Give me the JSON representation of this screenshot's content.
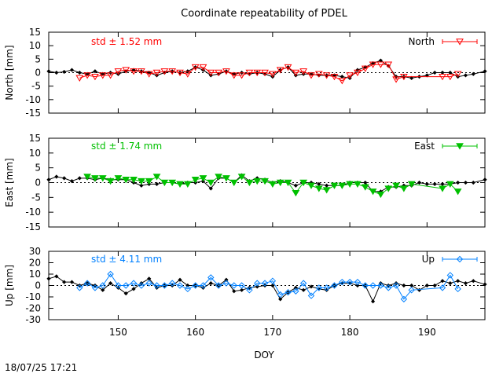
{
  "chart_data": {
    "type": "line",
    "title": "Coordinate repeatability of PDEL",
    "xlabel": "DOY",
    "xlim": [
      141,
      197.5
    ],
    "xticks": [
      150,
      160,
      170,
      180,
      190
    ],
    "panels": [
      {
        "id": "north",
        "ylabel": "North [mm]",
        "ylim": [
          -15,
          15
        ],
        "yticks": [
          -15,
          -10,
          -5,
          0,
          5,
          10,
          15
        ],
        "std_label": "std ± 1.52 mm",
        "legend": "North",
        "color": "#ff0000",
        "marker": "triangle-down-open",
        "reference": {
          "name": "reference",
          "x": [
            141,
            142,
            143,
            144,
            145,
            146,
            147,
            148,
            149,
            150,
            151,
            152,
            153,
            154,
            155,
            156,
            157,
            158,
            159,
            160,
            161,
            162,
            163,
            164,
            165,
            166,
            167,
            168,
            169,
            170,
            171,
            172,
            173,
            174,
            175,
            176,
            177,
            178,
            179,
            180,
            181,
            182,
            183,
            184,
            185,
            186,
            187,
            188,
            189,
            190,
            191,
            192,
            193,
            194,
            195,
            196,
            197.5
          ],
          "values": [
            0.5,
            0,
            0.3,
            1,
            0,
            -0.5,
            0.5,
            -0.5,
            0,
            -0.5,
            0.5,
            1,
            0.5,
            0,
            -1,
            0,
            0.5,
            0,
            0.5,
            2,
            1,
            -1,
            -0.5,
            0.5,
            -0.5,
            0,
            -0.5,
            0,
            -0.5,
            -1.5,
            1,
            2,
            -1,
            -0.5,
            -0.5,
            -1,
            -1,
            -1,
            -1.5,
            -2,
            1,
            2,
            3.5,
            4.5,
            2.5,
            -1.5,
            -1.5,
            -2,
            -1.5,
            -1,
            0,
            0,
            0,
            -1.5,
            -1,
            -0.5,
            0.5
          ]
        },
        "series": {
          "name": "North",
          "x": [
            145,
            146,
            147,
            148,
            149,
            150,
            151,
            152,
            153,
            154,
            155,
            156,
            157,
            158,
            159,
            160,
            161,
            162,
            163,
            164,
            165,
            166,
            167,
            168,
            169,
            170,
            171,
            172,
            173,
            174,
            175,
            176,
            177,
            178,
            179,
            180,
            181,
            182,
            183,
            184,
            185,
            186,
            187,
            192,
            193,
            194
          ],
          "values": [
            -2,
            -1,
            -1.5,
            -1,
            -1,
            0.5,
            1,
            0.5,
            0.5,
            -0.5,
            0,
            0.5,
            0.5,
            0,
            -0.5,
            2,
            2,
            0,
            0,
            0.5,
            -1,
            -1,
            0,
            0,
            0,
            -0.5,
            1,
            2,
            0,
            0.5,
            -1,
            -0.5,
            -1,
            -1.5,
            -3,
            -1,
            0,
            1.5,
            3,
            3,
            3,
            -2.5,
            -1.5,
            -1.5,
            -1.5,
            -0.5
          ]
        }
      },
      {
        "id": "east",
        "ylabel": "East [mm]",
        "ylim": [
          -15,
          15
        ],
        "yticks": [
          -15,
          -10,
          -5,
          0,
          5,
          10,
          15
        ],
        "std_label": "std ± 1.74 mm",
        "legend": "East",
        "color": "#00c000",
        "marker": "triangle-down-filled",
        "reference": {
          "name": "reference",
          "x": [
            141,
            142,
            143,
            144,
            145,
            146,
            147,
            148,
            149,
            150,
            151,
            152,
            153,
            154,
            155,
            156,
            157,
            158,
            159,
            160,
            161,
            162,
            163,
            164,
            165,
            166,
            167,
            168,
            169,
            170,
            171,
            172,
            173,
            174,
            175,
            176,
            177,
            178,
            179,
            180,
            181,
            182,
            183,
            184,
            185,
            186,
            187,
            188,
            189,
            190,
            191,
            192,
            193,
            194,
            195,
            196,
            197.5
          ],
          "values": [
            1,
            2,
            1.5,
            0.5,
            1.5,
            1.5,
            1,
            1.5,
            1,
            1,
            1,
            0,
            -1,
            -0.5,
            -0.5,
            0,
            0,
            -0.5,
            0,
            0,
            0.5,
            -2,
            1.5,
            1.5,
            0,
            2.5,
            0.5,
            1.5,
            1,
            0,
            0.5,
            0,
            -1,
            0,
            0,
            -0.5,
            -1,
            -1,
            -1,
            0,
            0,
            0,
            -3,
            -3,
            -1.5,
            -1.5,
            -1,
            -1,
            0,
            -0.5,
            -0.5,
            -0.5,
            -0.5,
            0,
            0,
            0,
            1
          ]
        },
        "series": {
          "name": "East",
          "x": [
            146,
            147,
            148,
            149,
            150,
            151,
            152,
            153,
            154,
            155,
            156,
            157,
            158,
            159,
            160,
            161,
            162,
            163,
            164,
            165,
            166,
            167,
            168,
            169,
            170,
            171,
            172,
            173,
            174,
            175,
            176,
            177,
            178,
            179,
            180,
            181,
            182,
            183,
            184,
            185,
            186,
            187,
            188,
            192,
            193,
            194
          ],
          "values": [
            2,
            1.5,
            1.5,
            0.5,
            1.5,
            1,
            1,
            0.5,
            0.5,
            2,
            0,
            0,
            -0.5,
            -0.5,
            1,
            1.5,
            0,
            2,
            1.5,
            0,
            2,
            0,
            0.5,
            0.5,
            -0.5,
            0,
            0,
            -3.5,
            0,
            -1,
            -2,
            -2.5,
            -1,
            -1,
            -0.5,
            -0.5,
            -1.5,
            -3,
            -4,
            -2,
            -1,
            -2,
            -0.5,
            -2,
            -0.5,
            -3
          ]
        }
      },
      {
        "id": "up",
        "ylabel": "Up [mm]",
        "ylim": [
          -30,
          30
        ],
        "yticks": [
          -30,
          -20,
          -10,
          0,
          10,
          20,
          30
        ],
        "std_label": "std ± 4.11 mm",
        "legend": "Up",
        "color": "#0080ff",
        "marker": "diamond-open",
        "reference": {
          "name": "reference",
          "x": [
            141,
            142,
            143,
            144,
            145,
            146,
            147,
            148,
            149,
            150,
            151,
            152,
            153,
            154,
            155,
            156,
            157,
            158,
            159,
            160,
            161,
            162,
            163,
            164,
            165,
            166,
            167,
            168,
            169,
            170,
            171,
            172,
            173,
            174,
            175,
            176,
            177,
            178,
            179,
            180,
            181,
            182,
            183,
            184,
            185,
            186,
            187,
            188,
            189,
            190,
            191,
            192,
            193,
            194,
            195,
            196,
            197.5
          ],
          "values": [
            6,
            8,
            3,
            3,
            0,
            2,
            0,
            -4,
            2,
            -2,
            -7,
            -3,
            2,
            6,
            -2,
            0,
            0,
            5,
            0,
            0,
            -2,
            2,
            0,
            5,
            -5,
            -4,
            -2,
            -1,
            0,
            0,
            -12,
            -6,
            -2,
            -4,
            -1,
            -3,
            -4,
            0,
            2,
            2,
            0,
            0,
            -14,
            2,
            0,
            2,
            0,
            0,
            -4,
            0,
            0,
            4,
            2,
            4,
            2,
            4,
            1
          ]
        },
        "series": {
          "name": "Up",
          "x": [
            145,
            146,
            147,
            148,
            149,
            150,
            151,
            152,
            153,
            154,
            155,
            156,
            157,
            158,
            159,
            160,
            161,
            162,
            163,
            164,
            165,
            166,
            167,
            168,
            169,
            170,
            171,
            172,
            173,
            174,
            175,
            176,
            177,
            178,
            179,
            180,
            181,
            182,
            183,
            184,
            185,
            186,
            187,
            188,
            192,
            193,
            194
          ],
          "values": [
            -2,
            2,
            -2,
            0,
            10,
            0,
            0,
            2,
            0,
            2,
            0,
            0,
            2,
            0,
            -3,
            0,
            0,
            7,
            0,
            2,
            0,
            0,
            -4,
            2,
            2,
            4,
            -8,
            -6,
            -5,
            2,
            -9,
            -2,
            -2,
            0,
            3,
            3,
            3,
            0,
            0,
            0,
            -2,
            0,
            -12,
            -4,
            -2,
            9,
            -3
          ]
        }
      }
    ]
  },
  "timestamp": "18/07/25 17:21"
}
